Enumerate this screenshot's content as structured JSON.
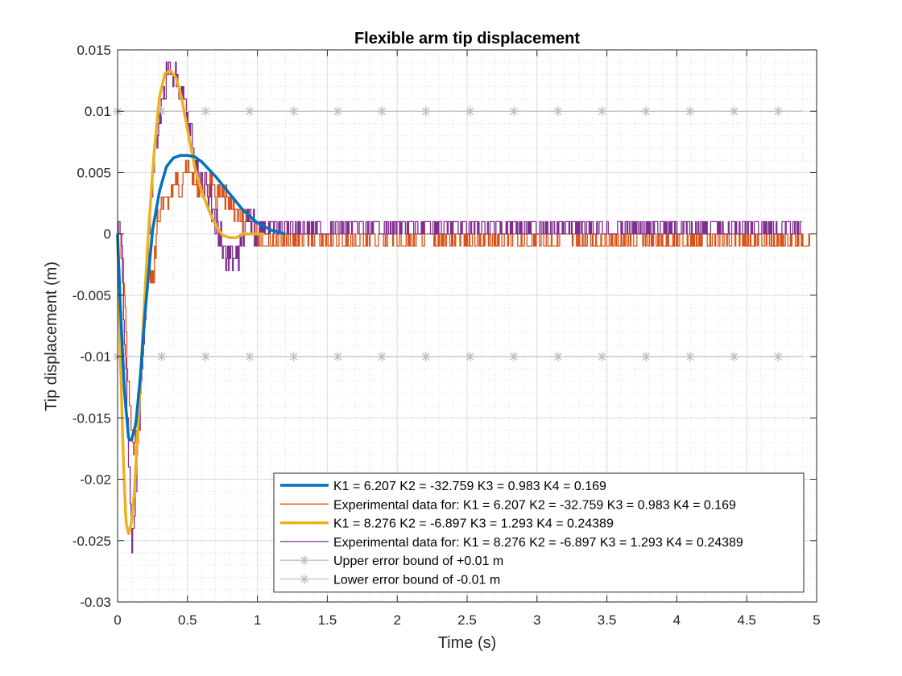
{
  "chart_data": {
    "type": "line",
    "title": "Flexible arm tip displacement",
    "xlabel": "Time (s)",
    "ylabel": "Tip displacement (m)",
    "xlim": [
      0,
      5
    ],
    "ylim": [
      -0.03,
      0.015
    ],
    "xticks": [
      "0",
      "0.5",
      "1",
      "1.5",
      "2",
      "2.5",
      "3",
      "3.5",
      "4",
      "4.5",
      "5"
    ],
    "yticks": [
      "0.015",
      "0.01",
      "0.005",
      "0",
      "-0.005",
      "-0.01",
      "-0.015",
      "-0.02",
      "-0.025",
      "-0.03"
    ],
    "grid": "on (major solid, minor dotted)",
    "legend_position": "bottom-right",
    "series": [
      {
        "name": "K1 = 6.207 K2 = -32.759 K3 = 0.983 K4 = 0.169",
        "color": "#0072BD",
        "style": "thick solid",
        "x": [
          0,
          0.02,
          0.05,
          0.08,
          0.1,
          0.13,
          0.16,
          0.2,
          0.25,
          0.3,
          0.35,
          0.4,
          0.45,
          0.5,
          0.55,
          0.6,
          0.7,
          0.8,
          0.9,
          1.0,
          1.1,
          1.2
        ],
        "y": [
          0,
          -0.006,
          -0.013,
          -0.0168,
          -0.0168,
          -0.0155,
          -0.012,
          -0.006,
          0.0003,
          0.0035,
          0.0055,
          0.0062,
          0.0064,
          0.0064,
          0.0063,
          0.0059,
          0.0047,
          0.0033,
          0.0019,
          0.0009,
          0.0003,
          0
        ]
      },
      {
        "name": "Experimental data for: K1 = 6.207 K2 = -32.759 K3 = 0.983 K4 = 0.169",
        "color": "#D95319",
        "style": "thin noisy solid",
        "x": [
          0,
          0.04,
          0.06,
          0.08,
          0.1,
          0.12,
          0.14,
          0.16,
          0.18,
          0.2,
          0.22,
          0.25,
          0.28,
          0.32,
          0.36,
          0.4,
          0.44,
          0.48,
          0.52,
          0.56,
          0.6,
          0.65,
          0.7,
          0.75,
          0.8,
          0.85,
          0.9,
          0.95,
          1.0,
          1.05,
          1.1,
          1.2,
          4.95
        ],
        "y": [
          0,
          -0.003,
          -0.008,
          -0.014,
          -0.0165,
          -0.018,
          -0.015,
          -0.012,
          -0.01,
          -0.006,
          -0.002,
          -0.004,
          0.001,
          0.002,
          0.003,
          0.004,
          0.004,
          0.005,
          0.005,
          0.004,
          0.004,
          0.004,
          0.003,
          0.003,
          0.002,
          0.002,
          0.001,
          0.001,
          0.0005,
          0.001,
          0,
          0,
          0
        ]
      },
      {
        "name": "K1 = 8.276 K2 = -6.897 K3 = 1.293 K4 = 0.24389",
        "color": "#EDB120",
        "style": "thick solid",
        "x": [
          0,
          0.02,
          0.04,
          0.06,
          0.08,
          0.1,
          0.12,
          0.15,
          0.18,
          0.22,
          0.26,
          0.3,
          0.34,
          0.38,
          0.42,
          0.46,
          0.5,
          0.55,
          0.6,
          0.65,
          0.7,
          0.75,
          0.8,
          0.85,
          0.9,
          0.95,
          1.0,
          1.05
        ],
        "y": [
          0,
          -0.01,
          -0.018,
          -0.0235,
          -0.0245,
          -0.0235,
          -0.021,
          -0.015,
          -0.008,
          0,
          0.0065,
          0.0112,
          0.0131,
          0.0133,
          0.0127,
          0.011,
          0.0085,
          0.0055,
          0.0035,
          0.002,
          0.0007,
          -0.0001,
          -0.0003,
          -0.0003,
          0,
          0,
          0,
          0
        ]
      },
      {
        "name": "Experimental data for: K1 = 8.276 K2 = -6.897 K3 = 1.293 K4 = 0.24389",
        "color": "#7E2F8E",
        "style": "thin noisy solid",
        "x": [
          0,
          0.02,
          0.04,
          0.06,
          0.08,
          0.1,
          0.12,
          0.15,
          0.18,
          0.22,
          0.26,
          0.3,
          0.33,
          0.36,
          0.4,
          0.44,
          0.47,
          0.5,
          0.54,
          0.58,
          0.62,
          0.66,
          0.7,
          0.74,
          0.78,
          0.82,
          0.86,
          0.9,
          0.95,
          1.0,
          1.1,
          1.2,
          4.9
        ],
        "y": [
          0,
          0.001,
          -0.006,
          -0.012,
          -0.019,
          -0.026,
          -0.023,
          -0.016,
          -0.009,
          0,
          0.006,
          0.01,
          0.012,
          0.013,
          0.013,
          0.012,
          0.011,
          0.009,
          0.007,
          0.005,
          0.004,
          0.003,
          0.001,
          0,
          -0.002,
          -0.002,
          -0.002,
          0,
          0.001,
          0,
          0.001,
          0,
          0
        ]
      },
      {
        "name": "Upper error bound of +0.01 m",
        "color": "#BFBFBF",
        "style": "solid with asterisk markers",
        "x": [
          0,
          4.9
        ],
        "y": [
          0.01,
          0.01
        ]
      },
      {
        "name": "Lower error bound of -0.01 m",
        "color": "#BFBFBF",
        "style": "solid with asterisk markers",
        "x": [
          0,
          4.9
        ],
        "y": [
          -0.01,
          -0.01
        ]
      }
    ]
  }
}
